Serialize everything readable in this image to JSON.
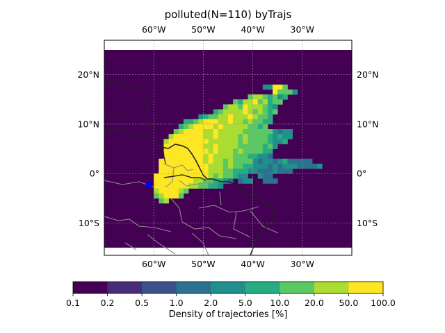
{
  "title": "polluted(N=110) byTrajs",
  "map": {
    "extent_lon": [
      -70,
      -20
    ],
    "extent_lat": [
      -15,
      25
    ],
    "lon_ticks": [
      -60,
      -50,
      -40,
      -30
    ],
    "lon_tick_labels": [
      "60°W",
      "50°W",
      "40°W",
      "30°W"
    ],
    "lat_ticks": [
      20,
      10,
      0,
      -10
    ],
    "lat_tick_labels": [
      "20°N",
      "10°N",
      "0°",
      "10°S"
    ],
    "gridlines": true,
    "background_color": "#440154",
    "marker": {
      "lon": -61,
      "lat": -2.3,
      "color": "#0000ff"
    }
  },
  "chart_data": {
    "type": "heatmap",
    "title": "polluted(N=110) byTrajs",
    "cell_size_deg": 1,
    "palette": [
      "#440154",
      "#472c7a",
      "#3b518b",
      "#2c718e",
      "#21908d",
      "#27ad81",
      "#5cc863",
      "#aadc32",
      "#fde725"
    ],
    "cells": [
      {
        "lat": 17,
        "lon_start": -38,
        "levels": [
          4,
          4,
          8,
          8,
          6
        ]
      },
      {
        "lat": 16,
        "lon_start": -36,
        "levels": [
          8,
          6,
          6,
          6,
          4
        ]
      },
      {
        "lat": 15,
        "lon_start": -41,
        "levels": [
          6,
          7,
          7,
          6,
          5,
          6,
          4,
          5
        ]
      },
      {
        "lat": 14,
        "lon_start": -44,
        "levels": [
          6,
          5,
          7,
          7,
          8,
          6,
          7,
          5,
          6,
          6
        ]
      },
      {
        "lat": 13,
        "lon_start": -46,
        "levels": [
          6,
          7,
          7,
          6,
          8,
          7,
          7,
          7,
          6,
          5,
          4
        ]
      },
      {
        "lat": 12,
        "lon_start": -48,
        "levels": [
          5,
          6,
          7,
          7,
          7,
          7,
          8,
          7,
          6,
          7,
          6,
          5,
          6
        ]
      },
      {
        "lat": 11,
        "lon_start": -51,
        "levels": [
          4,
          5,
          6,
          6,
          7,
          7,
          8,
          7,
          7,
          7,
          8,
          7,
          6,
          6,
          5
        ]
      },
      {
        "lat": 10,
        "lon_start": -54,
        "levels": [
          5,
          5,
          6,
          7,
          8,
          8,
          8,
          7,
          7,
          8,
          7,
          7,
          6,
          7,
          6,
          6,
          5,
          5
        ]
      },
      {
        "lat": 9,
        "lon_start": -55,
        "levels": [
          5,
          6,
          7,
          8,
          8,
          8,
          8,
          7,
          8,
          7,
          7,
          7,
          7,
          7,
          6,
          6,
          5,
          6
        ]
      },
      {
        "lat": 8,
        "lon_start": -56,
        "levels": [
          6,
          7,
          8,
          8,
          8,
          8,
          7,
          7,
          8,
          7,
          7,
          7,
          7,
          7,
          6,
          6,
          6,
          6,
          6,
          6,
          4,
          3,
          4,
          4
        ]
      },
      {
        "lat": 7,
        "lon_start": -57,
        "levels": [
          7,
          8,
          8,
          8,
          8,
          8,
          8,
          7,
          7,
          8,
          7,
          7,
          7,
          7,
          6,
          7,
          6,
          6,
          6,
          6,
          5,
          4,
          5,
          4,
          4
        ]
      },
      {
        "lat": 6,
        "lon_start": -58,
        "levels": [
          7,
          8,
          8,
          8,
          8,
          8,
          8,
          8,
          8,
          7,
          7,
          7,
          7,
          7,
          7,
          6,
          7,
          6,
          6,
          6,
          6,
          5,
          4,
          4,
          5
        ]
      },
      {
        "lat": 5,
        "lon_start": -58,
        "levels": [
          8,
          8,
          8,
          8,
          8,
          8,
          8,
          8,
          7,
          7,
          8,
          7,
          7,
          7,
          7,
          6,
          6,
          6,
          6,
          6,
          5,
          6,
          4
        ]
      },
      {
        "lat": 4,
        "lon_start": -58,
        "levels": [
          8,
          8,
          8,
          8,
          8,
          8,
          8,
          8,
          8,
          7,
          8,
          7,
          7,
          7,
          6,
          7,
          6,
          6,
          6,
          6,
          5,
          5
        ]
      },
      {
        "lat": 3,
        "lon_start": -58,
        "levels": [
          8,
          8,
          8,
          8,
          8,
          8,
          8,
          8,
          7,
          8,
          7,
          7,
          7,
          7,
          6,
          6,
          6,
          5,
          5,
          4,
          4,
          3
        ]
      },
      {
        "lat": 2,
        "lon_start": -59,
        "levels": [
          8,
          8,
          8,
          8,
          8,
          8,
          8,
          8,
          8,
          7,
          8,
          7,
          7,
          6,
          7,
          6,
          6,
          6,
          6,
          4,
          3,
          4,
          4,
          3,
          4,
          5,
          3,
          3,
          3,
          3,
          3
        ]
      },
      {
        "lat": 1,
        "lon_start": -59,
        "levels": [
          8,
          8,
          8,
          8,
          8,
          8,
          8,
          8,
          8,
          8,
          7,
          7,
          7,
          6,
          7,
          6,
          6,
          5,
          5,
          4,
          4,
          4,
          3,
          4,
          3,
          4,
          4,
          4,
          3,
          3,
          3,
          3,
          4
        ]
      },
      {
        "lat": 0,
        "lon_start": -59,
        "levels": [
          8,
          8,
          8,
          8,
          8,
          8,
          8,
          8,
          8,
          8,
          7,
          7,
          7,
          6,
          6,
          5,
          5,
          5,
          4,
          4,
          3,
          3,
          3,
          4,
          3,
          3,
          3
        ]
      },
      {
        "lat": -1,
        "lon_start": -60,
        "levels": [
          8,
          8,
          8,
          8,
          8,
          8,
          8,
          8,
          8,
          8,
          8,
          7,
          6,
          7,
          6,
          6,
          5,
          4,
          4,
          0,
          0,
          4,
          3,
          3
        ]
      },
      {
        "lat": -2,
        "lon_start": -60,
        "levels": [
          8,
          8,
          8,
          8,
          8,
          8,
          8,
          8,
          7,
          7,
          6,
          6,
          5,
          5,
          4,
          3,
          0,
          3,
          4,
          4,
          0,
          0,
          3,
          3,
          3
        ]
      },
      {
        "lat": -3,
        "lon_start": -60,
        "levels": [
          8,
          8,
          8,
          8,
          8,
          8,
          8,
          7,
          7,
          6,
          6,
          5,
          5,
          4
        ]
      },
      {
        "lat": -4,
        "lon_start": -60,
        "levels": [
          7,
          8,
          8,
          8,
          8,
          7,
          6
        ]
      },
      {
        "lat": -5,
        "lon_start": -60,
        "levels": [
          6,
          7,
          8,
          8,
          8,
          6
        ]
      },
      {
        "lat": -6,
        "lon_start": -59,
        "levels": [
          6,
          7
        ]
      }
    ]
  },
  "colorbar": {
    "boundaries": [
      "0.1",
      "0.2",
      "0.5",
      "1.0",
      "2.0",
      "5.0",
      "10.0",
      "20.0",
      "50.0",
      "100.0"
    ],
    "label": "Density of trajectories [%]"
  }
}
